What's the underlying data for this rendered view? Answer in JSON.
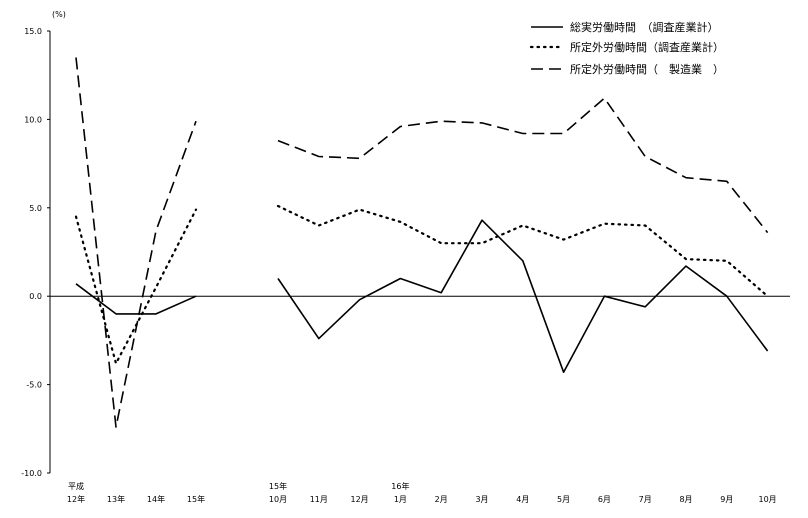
{
  "chart_data": {
    "type": "line",
    "ylabel": "(%)",
    "ylim": [
      -10,
      15
    ],
    "y_ticks": [
      "15.0",
      "10.0",
      "5.0",
      "0.0",
      "-5.0",
      "-10.0"
    ],
    "y_tick_values": [
      15,
      10,
      5,
      0,
      -5,
      -10
    ],
    "grid": false,
    "legend_position": "top-right",
    "annual": {
      "categories": [
        "平成12年",
        "13年",
        "14年",
        "15年"
      ],
      "tick_labels": [
        {
          "top": "平成",
          "bottom": "12年"
        },
        {
          "top": "",
          "bottom": "13年"
        },
        {
          "top": "",
          "bottom": "14年"
        },
        {
          "top": "",
          "bottom": "15年"
        }
      ],
      "series": [
        {
          "name": "総実労働時間　（調査産業計）",
          "values": [
            0.7,
            -1.0,
            -1.0,
            0.0
          ]
        },
        {
          "name": "所定外労働時間（調査産業計）",
          "values": [
            4.5,
            -3.8,
            0.5,
            4.9
          ]
        },
        {
          "name": "所定外労働時間（　製造業　）",
          "values": [
            13.5,
            -7.4,
            3.7,
            9.9
          ]
        }
      ]
    },
    "monthly": {
      "categories": [
        "15年10月",
        "11月",
        "12月",
        "16年1月",
        "2月",
        "3月",
        "4月",
        "5月",
        "6月",
        "7月",
        "8月",
        "9月",
        "10月"
      ],
      "tick_labels": [
        {
          "top": "15年",
          "bottom": "10月"
        },
        {
          "top": "",
          "bottom": "11月"
        },
        {
          "top": "",
          "bottom": "12月"
        },
        {
          "top": "16年",
          "bottom": "1月"
        },
        {
          "top": "",
          "bottom": "2月"
        },
        {
          "top": "",
          "bottom": "3月"
        },
        {
          "top": "",
          "bottom": "4月"
        },
        {
          "top": "",
          "bottom": "5月"
        },
        {
          "top": "",
          "bottom": "6月"
        },
        {
          "top": "",
          "bottom": "7月"
        },
        {
          "top": "",
          "bottom": "8月"
        },
        {
          "top": "",
          "bottom": "9月"
        },
        {
          "top": "",
          "bottom": "10月"
        }
      ],
      "series": [
        {
          "name": "総実労働時間　（調査産業計）",
          "values": [
            1.0,
            -2.4,
            -0.2,
            1.0,
            0.2,
            4.3,
            2.0,
            -4.3,
            0.0,
            -0.6,
            1.7,
            0.0,
            -3.1
          ]
        },
        {
          "name": "所定外労働時間（調査産業計）",
          "values": [
            5.1,
            4.0,
            4.9,
            4.2,
            3.0,
            3.0,
            4.0,
            3.2,
            4.1,
            4.0,
            2.1,
            2.0,
            0.0
          ]
        },
        {
          "name": "所定外労働時間（　製造業　）",
          "values": [
            8.8,
            7.9,
            7.8,
            9.6,
            9.9,
            9.8,
            9.2,
            9.2,
            11.2,
            7.9,
            6.7,
            6.5,
            3.6
          ]
        }
      ]
    },
    "legend": [
      {
        "label": "総実労働時間　（調査産業計）",
        "style": "solid"
      },
      {
        "label": "所定外労働時間（調査産業計）",
        "style": "dotted"
      },
      {
        "label": "所定外労働時間（　製造業　）",
        "style": "dashed"
      }
    ]
  }
}
